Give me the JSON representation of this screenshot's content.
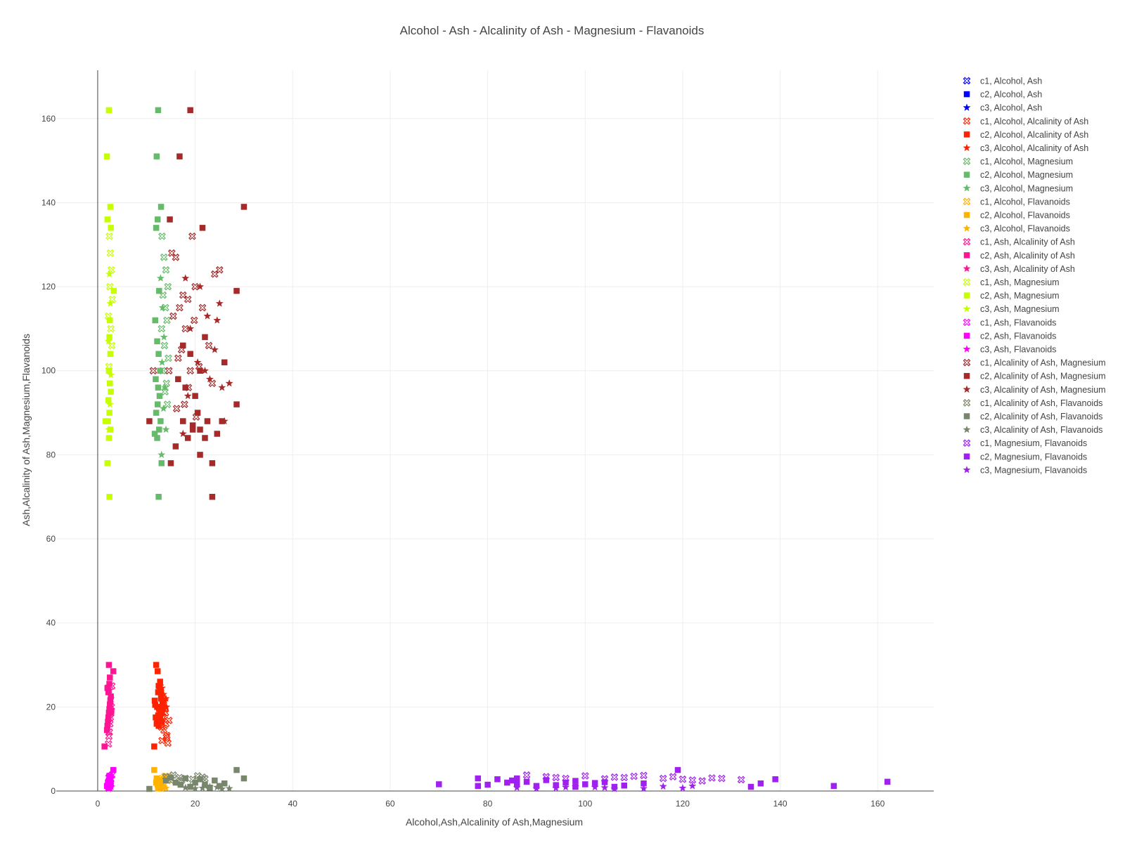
{
  "chart_data": {
    "type": "scatter",
    "title": "Alcohol - Ash - Alcalinity of Ash - Magnesium - Flavanoids",
    "xlabel": "Alcohol,Ash,Alcalinity of Ash,Magnesium",
    "ylabel": "Ash,Alcalinity of Ash,Magnesium,Flavanoids",
    "xlim": [
      -8.5,
      171.5
    ],
    "ylim": [
      0,
      171.5
    ],
    "xticks": [
      0,
      20,
      40,
      60,
      80,
      100,
      120,
      140,
      160
    ],
    "yticks": [
      0,
      20,
      40,
      60,
      80,
      100,
      120,
      140,
      160
    ],
    "grid": true,
    "legend_position": "right",
    "series": [
      {
        "name": "c1, Alcohol, Ash",
        "color": "#0000ff",
        "symbol": "x-open",
        "x": [],
        "y": []
      },
      {
        "name": "c2, Alcohol, Ash",
        "color": "#0000ff",
        "symbol": "square",
        "x": [],
        "y": []
      },
      {
        "name": "c3, Alcohol, Ash",
        "color": "#0000ff",
        "symbol": "star",
        "x": [],
        "y": []
      },
      {
        "name": "c1, Alcohol, Alcalinity of Ash",
        "color": "#ff2200",
        "symbol": "x-open",
        "x": [
          13.2,
          13.6,
          14.0,
          13.4,
          14.2,
          13.9,
          14.4,
          13.1,
          13.8,
          14.6,
          13.5,
          14.1
        ],
        "y": [
          12.0,
          14.5,
          16.0,
          17.5,
          13.2,
          18.6,
          11.4,
          15.2,
          19.6,
          16.8,
          21.0,
          12.8
        ]
      },
      {
        "name": "c2, Alcohol, Alcalinity of Ash",
        "color": "#ff2200",
        "symbol": "square",
        "x": [
          11.6,
          12.0,
          12.3,
          12.5,
          12.8,
          13.0,
          13.3,
          11.8,
          12.2,
          12.6,
          12.9,
          13.2,
          12.4,
          11.9,
          12.7,
          13.1,
          12.1,
          12.5,
          13.0,
          11.7,
          12.4,
          13.4,
          12.2,
          12.8
        ],
        "y": [
          10.6,
          30.0,
          28.5,
          25.0,
          24.0,
          22.0,
          21.0,
          20.5,
          20.0,
          19.5,
          19.0,
          18.5,
          18.0,
          17.5,
          17.0,
          16.5,
          16.0,
          15.5,
          22.5,
          21.5,
          23.5,
          19.8,
          17.2,
          26.0
        ]
      },
      {
        "name": "c3, Alcohol, Alcalinity of Ash",
        "color": "#ff2200",
        "symbol": "star",
        "x": [
          12.9,
          13.2,
          13.5,
          13.8,
          14.1,
          13.0,
          13.6,
          14.0,
          13.3,
          12.8
        ],
        "y": [
          25.0,
          24.5,
          23.0,
          21.5,
          20.0,
          18.0,
          19.5,
          22.0,
          17.0,
          23.5
        ]
      },
      {
        "name": "c1, Alcohol, Magnesium",
        "color": "#66bb6a",
        "symbol": "x-open",
        "x": [
          13.2,
          13.6,
          14.0,
          14.4,
          13.4,
          13.9,
          14.2,
          13.1,
          13.7,
          14.5,
          13.3,
          14.1,
          13.8,
          14.3
        ],
        "y": [
          132,
          127,
          124,
          120,
          118,
          115,
          112,
          110,
          106,
          103,
          100,
          97,
          95,
          92
        ]
      },
      {
        "name": "c2, Alcohol, Magnesium",
        "color": "#66bb6a",
        "symbol": "square",
        "x": [
          12.4,
          12.1,
          13.0,
          12.3,
          12.0,
          12.6,
          11.8,
          12.2,
          12.5,
          12.8,
          11.9,
          12.4,
          12.7,
          12.3,
          12.0,
          12.9,
          12.6,
          12.2,
          11.7,
          13.1,
          12.5
        ],
        "y": [
          162,
          151,
          139,
          136,
          134,
          119,
          112,
          107,
          104,
          100,
          98,
          96,
          94,
          92,
          90,
          88,
          86,
          84,
          85,
          78,
          70
        ]
      },
      {
        "name": "c3, Alcohol, Magnesium",
        "color": "#66bb6a",
        "symbol": "star",
        "x": [
          12.9,
          13.3,
          13.6,
          13.2,
          13.8,
          13.5,
          14.0,
          13.1
        ],
        "y": [
          122,
          115,
          108,
          102,
          96,
          91,
          86,
          80
        ]
      },
      {
        "name": "c1, Alcohol, Flavanoids",
        "color": "#ffb300",
        "symbol": "x-open",
        "x": [
          13.2,
          13.6,
          14.0,
          14.4,
          13.8,
          13.4,
          14.2
        ],
        "y": [
          3.0,
          2.8,
          3.2,
          2.5,
          3.5,
          2.2,
          3.4
        ]
      },
      {
        "name": "c2, Alcohol, Flavanoids",
        "color": "#ffb300",
        "symbol": "square",
        "x": [
          11.6,
          12.0,
          12.3,
          12.6,
          12.9,
          13.2,
          12.4,
          12.1
        ],
        "y": [
          5.0,
          2.0,
          1.5,
          0.8,
          1.2,
          2.5,
          0.6,
          3.0
        ]
      },
      {
        "name": "c3, Alcohol, Flavanoids",
        "color": "#ffb300",
        "symbol": "star",
        "x": [
          12.9,
          13.3,
          13.6,
          14.0,
          13.1
        ],
        "y": [
          0.6,
          0.8,
          1.0,
          0.7,
          0.5
        ]
      },
      {
        "name": "c1, Ash, Alcalinity of Ash",
        "color": "#ff1493",
        "symbol": "x-open",
        "x": [
          2.2,
          2.4,
          2.5,
          2.7,
          2.8,
          2.3,
          2.6,
          2.9
        ],
        "y": [
          11.2,
          14.0,
          16.0,
          18.5,
          20.0,
          13.0,
          17.5,
          25.0
        ]
      },
      {
        "name": "c2, Ash, Alcalinity of Ash",
        "color": "#ff1493",
        "symbol": "square",
        "x": [
          1.4,
          1.9,
          2.0,
          2.1,
          2.2,
          2.3,
          2.4,
          2.5,
          2.6,
          2.7,
          2.2,
          2.0,
          2.4,
          2.3,
          2.5,
          3.2,
          2.8
        ],
        "y": [
          10.6,
          14.5,
          15.5,
          16.5,
          17.5,
          18.5,
          19.5,
          20.5,
          21.5,
          22.5,
          23.5,
          24.5,
          25.5,
          30.0,
          27.0,
          28.5,
          19.0
        ]
      },
      {
        "name": "c3, Ash, Alcalinity of Ash",
        "color": "#ff1493",
        "symbol": "star",
        "x": [
          2.3,
          2.5,
          2.7,
          2.4,
          2.6
        ],
        "y": [
          25.0,
          24.0,
          22.0,
          19.0,
          21.0
        ]
      },
      {
        "name": "c1, Ash, Magnesium",
        "color": "#c6ff00",
        "symbol": "x-open",
        "x": [
          2.4,
          2.6,
          2.8,
          2.5,
          3.0,
          2.2,
          2.7,
          2.9,
          2.3
        ],
        "y": [
          132,
          128,
          124,
          120,
          117,
          113,
          110,
          106,
          101
        ]
      },
      {
        "name": "c2, Ash, Magnesium",
        "color": "#c6ff00",
        "symbol": "square",
        "x": [
          2.3,
          1.9,
          2.6,
          2.0,
          2.7,
          3.3,
          2.5,
          2.4,
          2.6,
          2.3,
          2.5,
          2.7,
          2.2,
          2.4,
          2.1,
          2.6,
          1.6,
          2.3,
          2.0,
          2.4
        ],
        "y": [
          162,
          151,
          139,
          136,
          134,
          119,
          112,
          108,
          104,
          100,
          97,
          95,
          93,
          90,
          88,
          86,
          88,
          84,
          78,
          70
        ]
      },
      {
        "name": "c3, Ash, Magnesium",
        "color": "#c6ff00",
        "symbol": "star",
        "x": [
          2.4,
          2.6,
          2.2,
          2.7,
          2.5,
          2.3
        ],
        "y": [
          123,
          116,
          107,
          99,
          92,
          86
        ]
      },
      {
        "name": "c1, Ash, Flavanoids",
        "color": "#ff00ff",
        "symbol": "x-open",
        "x": [
          2.3,
          2.5,
          2.7,
          2.9,
          2.4,
          2.6
        ],
        "y": [
          3.2,
          3.5,
          2.8,
          3.8,
          2.5,
          3.0
        ]
      },
      {
        "name": "c2, Ash, Flavanoids",
        "color": "#ff00ff",
        "symbol": "square",
        "x": [
          1.9,
          2.1,
          2.3,
          2.5,
          2.7,
          3.2,
          2.2,
          2.4
        ],
        "y": [
          1.2,
          2.0,
          2.5,
          3.0,
          1.8,
          5.0,
          0.8,
          3.6
        ]
      },
      {
        "name": "c3, Ash, Flavanoids",
        "color": "#ff00ff",
        "symbol": "star",
        "x": [
          2.2,
          2.4,
          2.6,
          2.8,
          2.5
        ],
        "y": [
          0.5,
          0.8,
          0.7,
          1.0,
          0.6
        ]
      },
      {
        "name": "c1, Alcalinity of Ash, Magnesium",
        "color": "#a52a2a",
        "symbol": "x-open",
        "x": [
          19.4,
          15.2,
          16.0,
          25.0,
          24.0,
          20.0,
          17.5,
          18.5,
          16.8,
          21.5,
          15.5,
          19.8,
          18.0,
          22.8,
          17.2,
          16.5,
          20.8,
          19.0,
          14.6,
          23.5,
          18.6,
          11.4,
          17.8,
          16.2,
          20.2
        ],
        "y": [
          132,
          128,
          127,
          124,
          123,
          120,
          118,
          117,
          115,
          115,
          113,
          112,
          110,
          106,
          105,
          103,
          101,
          100,
          100,
          97,
          96,
          100,
          92,
          91,
          89
        ]
      },
      {
        "name": "c2, Alcalinity of Ash, Magnesium",
        "color": "#a52a2a",
        "symbol": "square",
        "x": [
          19.0,
          16.8,
          30.0,
          14.8,
          21.5,
          28.5,
          22.0,
          17.5,
          19.0,
          26.0,
          21.0,
          16.5,
          18.0,
          20.0,
          28.5,
          10.6,
          22.5,
          19.5,
          21.0,
          24.5,
          18.5,
          16.0,
          21.0,
          23.5,
          15.0,
          23.5,
          19.5,
          22.0,
          20.5,
          17.5,
          25.5
        ],
        "y": [
          162,
          151,
          139,
          136,
          134,
          119,
          108,
          106,
          104,
          102,
          100,
          98,
          96,
          94,
          92,
          88,
          88,
          87,
          86,
          85,
          84,
          82,
          80,
          78,
          78,
          70,
          86,
          84,
          90,
          88,
          88
        ]
      },
      {
        "name": "c3, Alcalinity of Ash, Magnesium",
        "color": "#a52a2a",
        "symbol": "star",
        "x": [
          18.0,
          21.0,
          25.0,
          22.5,
          24.5,
          19.0,
          24.0,
          27.0,
          20.5,
          22.0,
          18.5,
          23.0,
          25.5,
          17.5,
          26.0
        ],
        "y": [
          122,
          120,
          116,
          113,
          112,
          110,
          105,
          97,
          102,
          100,
          94,
          98,
          96,
          85,
          88
        ]
      },
      {
        "name": "c1, Alcalinity of Ash, Flavanoids",
        "color": "#78866b",
        "symbol": "x-open",
        "x": [
          14.0,
          15.5,
          16.8,
          18.0,
          19.5,
          20.5,
          22.0,
          17.2,
          15.0,
          21.5
        ],
        "y": [
          3.4,
          3.8,
          3.2,
          3.0,
          2.8,
          3.6,
          2.9,
          2.5,
          2.6,
          3.3
        ]
      },
      {
        "name": "c2, Alcalinity of Ash, Flavanoids",
        "color": "#78866b",
        "symbol": "square",
        "x": [
          10.6,
          14.0,
          16.0,
          18.0,
          20.0,
          22.0,
          24.0,
          26.0,
          28.5,
          30.0,
          19.0,
          21.0,
          23.0,
          25.0,
          17.0,
          15.0
        ],
        "y": [
          0.5,
          2.5,
          2.0,
          3.0,
          2.0,
          1.5,
          2.5,
          1.8,
          5.0,
          3.0,
          1.0,
          2.8,
          0.8,
          1.2,
          1.5,
          3.2
        ]
      },
      {
        "name": "c3, Alcalinity of Ash, Flavanoids",
        "color": "#78866b",
        "symbol": "star",
        "x": [
          18.0,
          20.0,
          21.5,
          23.0,
          24.5,
          25.5,
          27.0,
          22.0,
          19.0
        ],
        "y": [
          0.8,
          0.6,
          0.7,
          1.0,
          0.9,
          0.5,
          0.6,
          1.2,
          1.1
        ]
      },
      {
        "name": "c1, Magnesium, Flavanoids",
        "color": "#a020f0",
        "symbol": "x-open",
        "x": [
          88,
          92,
          96,
          100,
          104,
          108,
          112,
          116,
          118,
          120,
          122,
          124,
          126,
          128,
          132,
          110,
          106,
          94
        ],
        "y": [
          3.8,
          3.4,
          3.0,
          3.6,
          2.9,
          3.2,
          3.7,
          3.0,
          3.4,
          2.8,
          2.6,
          2.4,
          3.1,
          3.0,
          2.7,
          3.5,
          3.3,
          3.2
        ]
      },
      {
        "name": "c2, Magnesium, Flavanoids",
        "color": "#a020f0",
        "symbol": "square",
        "x": [
          70,
          78,
          80,
          82,
          84,
          85,
          86,
          88,
          90,
          92,
          94,
          96,
          98,
          100,
          102,
          104,
          106,
          108,
          112,
          119,
          134,
          136,
          139,
          151,
          162,
          78,
          86,
          98
        ],
        "y": [
          1.6,
          3.0,
          1.5,
          2.8,
          2.0,
          2.5,
          1.8,
          2.2,
          1.2,
          2.6,
          1.4,
          2.0,
          2.4,
          1.6,
          1.9,
          2.1,
          1.0,
          1.3,
          1.8,
          5.0,
          1.0,
          1.8,
          2.8,
          1.2,
          2.2,
          1.2,
          3.0,
          1.0
        ]
      },
      {
        "name": "c3, Magnesium, Flavanoids",
        "color": "#a020f0",
        "symbol": "star",
        "x": [
          86,
          90,
          94,
          98,
          102,
          106,
          112,
          116,
          120,
          122,
          96,
          104
        ],
        "y": [
          0.8,
          0.6,
          0.7,
          1.0,
          0.9,
          0.5,
          0.6,
          1.1,
          0.7,
          1.2,
          0.9,
          0.8
        ]
      }
    ]
  }
}
